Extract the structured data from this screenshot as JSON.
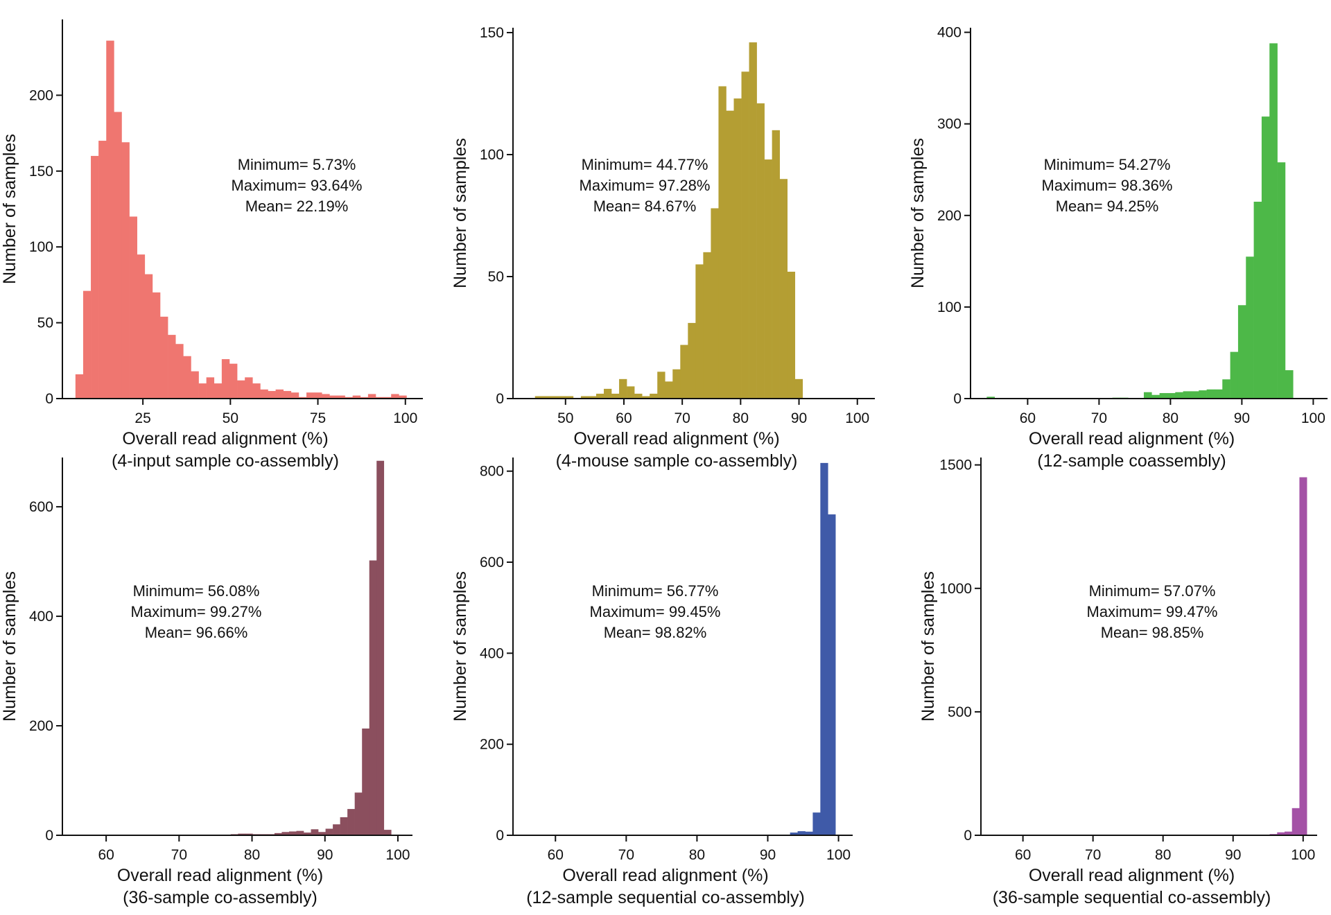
{
  "chart_data": [
    {
      "type": "bar",
      "color": "#ef7670",
      "ylabel": "Number of samples",
      "xlabel": "Overall read alignment (%)",
      "subtitle": "(4-input sample co-assembly)",
      "xlim": [
        2,
        105
      ],
      "ylim": [
        0,
        250
      ],
      "xticks": [
        25,
        50,
        75,
        100
      ],
      "yticks": [
        0,
        50,
        100,
        150,
        200
      ],
      "stats": [
        "Minimum= 5.73%",
        "Maximum= 93.64%",
        "Mean= 22.19%"
      ],
      "bin_start": 5.73,
      "bin_width": 2.2,
      "values": [
        16,
        71,
        160,
        170,
        236,
        189,
        169,
        120,
        95,
        82,
        70,
        54,
        42,
        36,
        28,
        18,
        10,
        14,
        10,
        26,
        23,
        12,
        14,
        10,
        6,
        5,
        6,
        5,
        4,
        1,
        4,
        4,
        3,
        2,
        2,
        1,
        2,
        1,
        3,
        1,
        1,
        3,
        2
      ]
    },
    {
      "type": "bar",
      "color": "#b49e33",
      "ylabel": "Number of samples",
      "xlabel": "Overall read alignment (%)",
      "subtitle": "(4-mouse sample co-assembly)",
      "xlim": [
        41,
        103
      ],
      "ylim": [
        0,
        152
      ],
      "xticks": [
        50,
        60,
        70,
        80,
        90,
        100
      ],
      "yticks": [
        0,
        50,
        100,
        150
      ],
      "stats": [
        "Minimum= 44.77%",
        "Maximum= 97.28%",
        "Mean= 84.67%"
      ],
      "bin_start": 44.77,
      "bin_width": 1.31,
      "values": [
        1,
        1,
        1,
        1,
        1,
        0,
        1,
        1,
        2,
        4,
        2,
        8,
        5,
        2,
        1,
        2,
        11,
        7,
        12,
        22,
        31,
        55,
        60,
        78,
        128,
        118,
        123,
        134,
        146,
        121,
        98,
        110,
        90,
        52,
        8
      ]
    },
    {
      "type": "bar",
      "color": "#4db848",
      "ylabel": "Number of samples",
      "xlabel": "Overall read alignment (%)",
      "subtitle": "(12-sample coassembly)",
      "xlim": [
        52,
        102
      ],
      "ylim": [
        0,
        405
      ],
      "xticks": [
        60,
        70,
        80,
        90,
        100
      ],
      "yticks": [
        0,
        100,
        200,
        300,
        400
      ],
      "stats": [
        "Minimum= 54.27%",
        "Maximum= 98.36%",
        "Mean= 94.25%"
      ],
      "bin_start": 54.27,
      "bin_width": 1.1,
      "values": [
        2,
        0,
        0,
        0,
        0,
        0,
        0,
        0,
        0,
        0,
        0,
        0,
        0,
        0,
        0,
        0,
        1,
        1,
        0,
        0,
        7,
        4,
        6,
        6,
        7,
        8,
        8,
        9,
        10,
        10,
        21,
        51,
        102,
        155,
        215,
        308,
        388,
        258,
        31
      ]
    },
    {
      "type": "bar",
      "color": "#8b4f5e",
      "ylabel": "Number of samples",
      "xlabel": "Overall read alignment (%)",
      "subtitle": "(36-sample co-assembly)",
      "xlim": [
        54,
        102
      ],
      "ylim": [
        0,
        690
      ],
      "xticks": [
        60,
        70,
        80,
        90,
        100
      ],
      "yticks": [
        0,
        200,
        400,
        600
      ],
      "stats": [
        "Minimum= 56.08%",
        "Maximum= 99.27%",
        "Mean= 96.66%"
      ],
      "bin_start": 56.08,
      "bin_width": 1.0,
      "values": [
        1,
        0,
        0,
        0,
        0,
        0,
        0,
        0,
        0,
        0,
        0,
        0,
        0,
        0,
        0,
        0,
        0,
        1,
        0,
        1,
        0,
        2,
        3,
        3,
        2,
        2,
        2,
        4,
        6,
        7,
        8,
        5,
        11,
        6,
        12,
        20,
        33,
        48,
        78,
        195,
        502,
        684,
        10
      ]
    },
    {
      "type": "bar",
      "color": "#3f5aa8",
      "ylabel": "Number of samples",
      "xlabel": "Overall read alignment (%)",
      "subtitle": "(12-sample sequential co-assembly)",
      "xlim": [
        54,
        102
      ],
      "ylim": [
        0,
        830
      ],
      "xticks": [
        60,
        70,
        80,
        90,
        100
      ],
      "yticks": [
        0,
        200,
        400,
        600,
        800
      ],
      "stats": [
        "Minimum= 56.77%",
        "Maximum= 99.45%",
        "Mean= 98.82%"
      ],
      "bin_start": 56.77,
      "bin_width": 1.07,
      "values": [
        1,
        0,
        0,
        0,
        0,
        0,
        0,
        0,
        0,
        0,
        0,
        0,
        0,
        0,
        0,
        0,
        0,
        0,
        0,
        0,
        0,
        0,
        0,
        0,
        0,
        0,
        0,
        0,
        0,
        0,
        0,
        1,
        0,
        0,
        6,
        9,
        8,
        50,
        818,
        705
      ]
    },
    {
      "type": "bar",
      "color": "#a452a6",
      "ylabel": "Number of samples",
      "xlabel": "Overall read alignment (%)",
      "subtitle": "(36-sample sequential co-assembly)",
      "xlim": [
        54,
        102
      ],
      "ylim": [
        0,
        1530
      ],
      "xticks": [
        60,
        70,
        80,
        90,
        100
      ],
      "yticks": [
        0,
        500,
        1000,
        1500
      ],
      "stats": [
        "Minimum= 57.07%",
        "Maximum= 99.47%",
        "Mean= 98.85%"
      ],
      "bin_start": 57.07,
      "bin_width": 1.06,
      "values": [
        1,
        0,
        0,
        0,
        0,
        0,
        0,
        0,
        0,
        0,
        0,
        0,
        0,
        0,
        0,
        0,
        0,
        0,
        0,
        0,
        0,
        0,
        0,
        0,
        0,
        0,
        0,
        0,
        0,
        0,
        0,
        0,
        0,
        1,
        0,
        2,
        5,
        12,
        15,
        110,
        1450
      ]
    }
  ]
}
